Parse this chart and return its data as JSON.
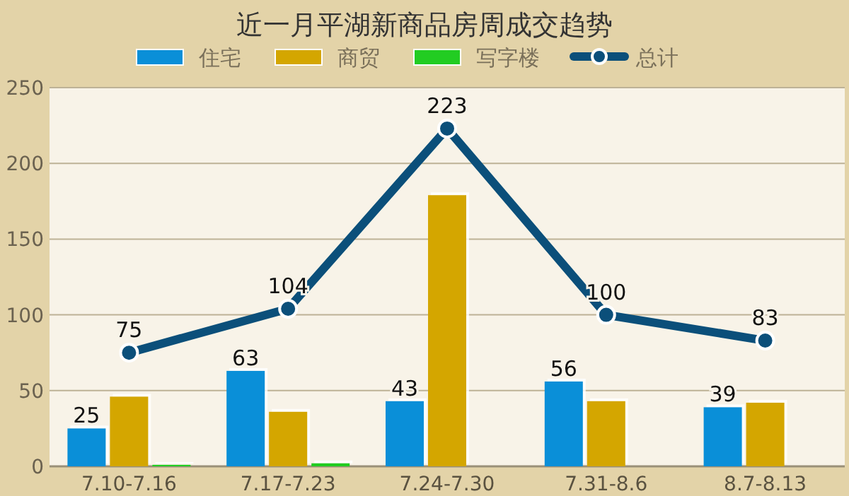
{
  "chart_data": {
    "type": "bar",
    "title": "近一月平湖新商品房周成交趋势",
    "categories": [
      "7.10-7.16",
      "7.17-7.23",
      "7.24-7.30",
      "7.31-8.6",
      "8.7-8.13"
    ],
    "series": [
      {
        "name": "住宅",
        "color": "#0a8fd8",
        "values": [
          25,
          63,
          43,
          56,
          39
        ],
        "value_labels": [
          "25",
          "63",
          "43",
          "56",
          "39"
        ]
      },
      {
        "name": "商贸",
        "color": "#d4a600",
        "values": [
          46,
          36,
          179,
          43,
          42
        ]
      },
      {
        "name": "写字楼",
        "color": "#22cc22",
        "values": [
          1,
          2,
          0,
          0,
          0
        ]
      },
      {
        "name": "总计",
        "type": "line",
        "color": "#0b4f7a",
        "marker": "circle",
        "values": [
          75,
          104,
          223,
          100,
          83
        ],
        "value_labels": [
          "75",
          "104",
          "223",
          "100",
          "83"
        ]
      }
    ],
    "ylim": [
      0,
      250
    ],
    "yticks": [
      0,
      50,
      100,
      150,
      200,
      250
    ],
    "grid": "y",
    "legend": "top"
  }
}
